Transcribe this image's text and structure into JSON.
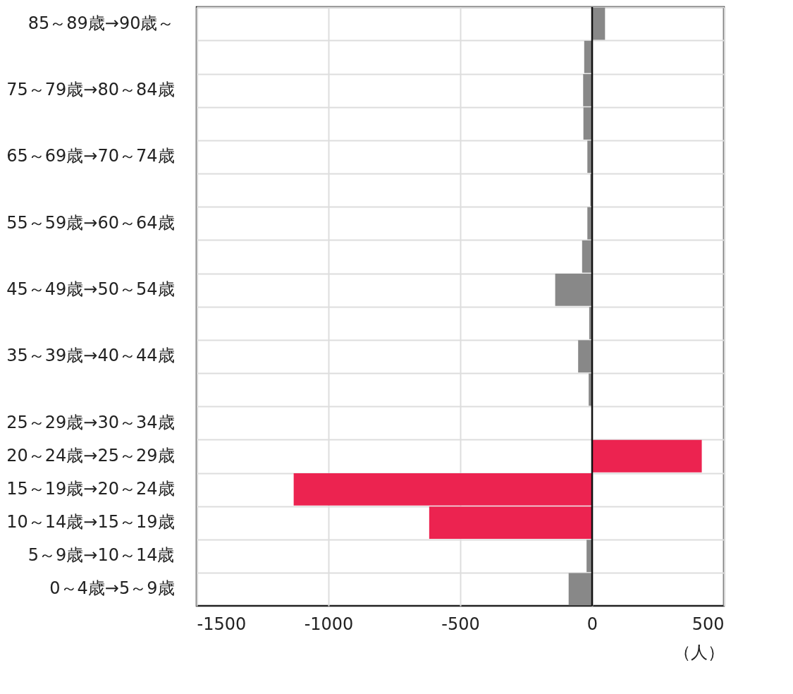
{
  "chart_data": {
    "type": "bar",
    "orientation": "horizontal",
    "categories": [
      "85～89歳→90歳～",
      null,
      "75～79歳→80～84歳",
      null,
      "65～69歳→70～74歳",
      null,
      "55～59歳→60～64歳",
      null,
      "45～49歳→50～54歳",
      null,
      "35～39歳→40～44歳",
      null,
      "25～29歳→30～34歳",
      "20～24歳→25～29歳",
      "15～19歳→20～24歳",
      "10～14歳→15～19歳",
      "5～9歳→10～14歳",
      "0～4歳→5～9歳"
    ],
    "values": [
      49,
      -30,
      -34,
      -33,
      -18,
      -7,
      -18,
      -38,
      -140,
      -11,
      -53,
      -13,
      0,
      416,
      -1132,
      -618,
      -21,
      -89
    ],
    "colors": [
      "#888888",
      "#888888",
      "#888888",
      "#888888",
      "#888888",
      "#888888",
      "#888888",
      "#888888",
      "#888888",
      "#888888",
      "#888888",
      "#888888",
      "#888888",
      "#ec2350",
      "#ec2350",
      "#ec2350",
      "#888888",
      "#888888"
    ],
    "xlim": [
      -1500,
      500
    ],
    "xticks": [
      -1500,
      -1000,
      -500,
      0,
      500
    ],
    "xlabel": "（人）",
    "grid": true,
    "ref_lines": [
      {
        "axis": "x",
        "value": 0
      }
    ]
  }
}
